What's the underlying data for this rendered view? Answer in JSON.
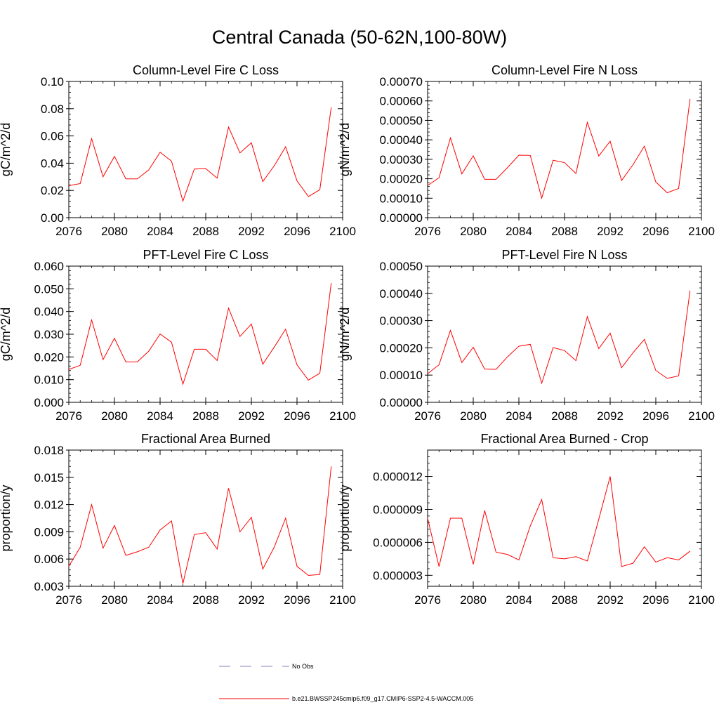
{
  "figure_title": "Central Canada (50-62N,100-80W)",
  "chart_data": [
    {
      "type": "line",
      "title": "Column-Level Fire C Loss",
      "xlabel": "",
      "ylabel": "gC/m^2/d",
      "xlim": [
        2076,
        2100
      ],
      "ylim": [
        0,
        0.1
      ],
      "x_ticks": [
        2076,
        2080,
        2084,
        2088,
        2092,
        2096,
        2100
      ],
      "y_ticks": [
        0,
        0.02,
        0.04,
        0.06,
        0.08,
        0.1
      ],
      "y_tick_labels": [
        "0.00",
        "0.02",
        "0.04",
        "0.06",
        "0.08",
        "0.10"
      ],
      "series": [
        {
          "name": "b.e21.BWSSP245cmip6.f09_g17.CMIP6-SSP2-4.5-WACCM.005",
          "color": "#ff0000",
          "x": [
            2076,
            2077,
            2078,
            2079,
            2080,
            2081,
            2082,
            2083,
            2084,
            2085,
            2086,
            2087,
            2088,
            2089,
            2090,
            2091,
            2092,
            2093,
            2094,
            2095,
            2096,
            2097,
            2098,
            2099
          ],
          "values": [
            0.0235,
            0.025,
            0.058,
            0.03,
            0.045,
            0.0285,
            0.0285,
            0.035,
            0.048,
            0.0415,
            0.0122,
            0.0357,
            0.036,
            0.029,
            0.0665,
            0.0475,
            0.055,
            0.0265,
            0.038,
            0.052,
            0.027,
            0.0155,
            0.0205,
            0.081
          ]
        }
      ]
    },
    {
      "type": "line",
      "title": "Column-Level Fire N Loss",
      "xlabel": "",
      "ylabel": "gN/m^2/d",
      "xlim": [
        2076,
        2100
      ],
      "ylim": [
        0,
        0.0007
      ],
      "x_ticks": [
        2076,
        2080,
        2084,
        2088,
        2092,
        2096,
        2100
      ],
      "y_ticks": [
        0,
        0.0001,
        0.0002,
        0.0003,
        0.0004,
        0.0005,
        0.0006,
        0.0007
      ],
      "y_tick_labels": [
        "0.00000",
        "0.00010",
        "0.00020",
        "0.00030",
        "0.00040",
        "0.00050",
        "0.00060",
        "0.00070"
      ],
      "series": [
        {
          "name": "b.e21.BWSSP245cmip6.f09_g17.CMIP6-SSP2-4.5-WACCM.005",
          "color": "#ff0000",
          "x": [
            2076,
            2077,
            2078,
            2079,
            2080,
            2081,
            2082,
            2083,
            2084,
            2085,
            2086,
            2087,
            2088,
            2089,
            2090,
            2091,
            2092,
            2093,
            2094,
            2095,
            2096,
            2097,
            2098,
            2099
          ],
          "values": [
            0.000165,
            0.000205,
            0.00041,
            0.000225,
            0.000318,
            0.000197,
            0.000197,
            0.000257,
            0.000321,
            0.00032,
            0.0001,
            0.000295,
            0.000283,
            0.000227,
            0.00049,
            0.000317,
            0.000393,
            0.000191,
            0.000272,
            0.000368,
            0.000183,
            0.000128,
            0.00015,
            0.00061
          ]
        }
      ]
    },
    {
      "type": "line",
      "title": "PFT-Level Fire C Loss",
      "xlabel": "",
      "ylabel": "gC/m^2/d",
      "xlim": [
        2076,
        2100
      ],
      "ylim": [
        0,
        0.06
      ],
      "x_ticks": [
        2076,
        2080,
        2084,
        2088,
        2092,
        2096,
        2100
      ],
      "y_ticks": [
        0,
        0.01,
        0.02,
        0.03,
        0.04,
        0.05,
        0.06
      ],
      "y_tick_labels": [
        "0.000",
        "0.010",
        "0.020",
        "0.030",
        "0.040",
        "0.050",
        "0.060"
      ],
      "series": [
        {
          "name": "b.e21.BWSSP245cmip6.f09_g17.CMIP6-SSP2-4.5-WACCM.005",
          "color": "#ff0000",
          "x": [
            2076,
            2077,
            2078,
            2079,
            2080,
            2081,
            2082,
            2083,
            2084,
            2085,
            2086,
            2087,
            2088,
            2089,
            2090,
            2091,
            2092,
            2093,
            2094,
            2095,
            2096,
            2097,
            2098,
            2099
          ],
          "values": [
            0.0145,
            0.0163,
            0.0363,
            0.0188,
            0.0282,
            0.0178,
            0.0178,
            0.0225,
            0.0301,
            0.0265,
            0.008,
            0.0234,
            0.0234,
            0.0184,
            0.0415,
            0.029,
            0.0345,
            0.0168,
            0.0243,
            0.0322,
            0.0165,
            0.0098,
            0.0128,
            0.0525
          ]
        }
      ]
    },
    {
      "type": "line",
      "title": "PFT-Level Fire N Loss",
      "xlabel": "",
      "ylabel": "gN/m^2/d",
      "xlim": [
        2076,
        2100
      ],
      "ylim": [
        0,
        0.0005
      ],
      "x_ticks": [
        2076,
        2080,
        2084,
        2088,
        2092,
        2096,
        2100
      ],
      "y_ticks": [
        0,
        0.0001,
        0.0002,
        0.0003,
        0.0004,
        0.0005
      ],
      "y_tick_labels": [
        "0.00000",
        "0.00010",
        "0.00020",
        "0.00030",
        "0.00040",
        "0.00050"
      ],
      "series": [
        {
          "name": "b.e21.BWSSP245cmip6.f09_g17.CMIP6-SSP2-4.5-WACCM.005",
          "color": "#ff0000",
          "x": [
            2076,
            2077,
            2078,
            2079,
            2080,
            2081,
            2082,
            2083,
            2084,
            2085,
            2086,
            2087,
            2088,
            2089,
            2090,
            2091,
            2092,
            2093,
            2094,
            2095,
            2096,
            2097,
            2098,
            2099
          ],
          "values": [
            0.000105,
            0.000138,
            0.000264,
            0.000146,
            0.000202,
            0.000122,
            0.000121,
            0.000167,
            0.000206,
            0.000213,
            7e-05,
            0.000201,
            0.00019,
            0.000153,
            0.000315,
            0.000197,
            0.000254,
            0.000127,
            0.000182,
            0.000231,
            0.000117,
            8.8e-05,
            9.7e-05,
            0.00041
          ]
        }
      ]
    },
    {
      "type": "line",
      "title": "Fractional Area Burned",
      "xlabel": "",
      "ylabel": "proportion/y",
      "xlim": [
        2076,
        2100
      ],
      "ylim": [
        0.003,
        0.018
      ],
      "x_ticks": [
        2076,
        2080,
        2084,
        2088,
        2092,
        2096,
        2100
      ],
      "y_ticks": [
        0.003,
        0.006,
        0.009,
        0.012,
        0.015,
        0.018
      ],
      "y_tick_labels": [
        "0.003",
        "0.006",
        "0.009",
        "0.012",
        "0.015",
        "0.018"
      ],
      "series": [
        {
          "name": "b.e21.BWSSP245cmip6.f09_g17.CMIP6-SSP2-4.5-WACCM.005",
          "color": "#ff0000",
          "x": [
            2076,
            2077,
            2078,
            2079,
            2080,
            2081,
            2082,
            2083,
            2084,
            2085,
            2086,
            2087,
            2088,
            2089,
            2090,
            2091,
            2092,
            2093,
            2094,
            2095,
            2096,
            2097,
            2098,
            2099
          ],
          "values": [
            0.0052,
            0.0073,
            0.012,
            0.0072,
            0.0097,
            0.0064,
            0.0068,
            0.0073,
            0.0092,
            0.0102,
            0.0033,
            0.0087,
            0.0089,
            0.0071,
            0.0138,
            0.009,
            0.0106,
            0.0049,
            0.0073,
            0.0105,
            0.0052,
            0.0042,
            0.0043,
            0.0162
          ]
        }
      ]
    },
    {
      "type": "line",
      "title": "Fractional Area Burned - Crop",
      "xlabel": "",
      "ylabel": "proportion/y",
      "xlim": [
        2076,
        2100
      ],
      "ylim": [
        2e-06,
        1.44e-05
      ],
      "x_ticks": [
        2076,
        2080,
        2084,
        2088,
        2092,
        2096,
        2100
      ],
      "y_ticks": [
        3e-06,
        6e-06,
        9e-06,
        1.2e-05
      ],
      "y_tick_labels": [
        "0.000003",
        "0.000006",
        "0.000009",
        "0.000012"
      ],
      "series": [
        {
          "name": "b.e21.BWSSP245cmip6.f09_g17.CMIP6-SSP2-4.5-WACCM.005",
          "color": "#ff0000",
          "x": [
            2076,
            2077,
            2078,
            2079,
            2080,
            2081,
            2082,
            2083,
            2084,
            2085,
            2086,
            2087,
            2088,
            2089,
            2090,
            2091,
            2092,
            2093,
            2094,
            2095,
            2096,
            2097,
            2098,
            2099
          ],
          "values": [
            8.2e-06,
            3.8e-06,
            8.2e-06,
            8.2e-06,
            4e-06,
            8.9e-06,
            5.1e-06,
            4.9e-06,
            4.4e-06,
            7.5e-06,
            9.9e-06,
            4.6e-06,
            4.5e-06,
            4.7e-06,
            4.3e-06,
            8.1e-06,
            1.2e-05,
            3.8e-06,
            4.1e-06,
            5.6e-06,
            4.2e-06,
            4.6e-06,
            4.4e-06,
            5.2e-06
          ]
        }
      ]
    }
  ],
  "legend": {
    "obs_label": "No Obs",
    "obs_color": "#8080c0",
    "model_label": "b.e21.BWSSP245cmip6.f09_g17.CMIP6-SSP2-4.5-WACCM.005",
    "model_color": "#ff0000"
  }
}
